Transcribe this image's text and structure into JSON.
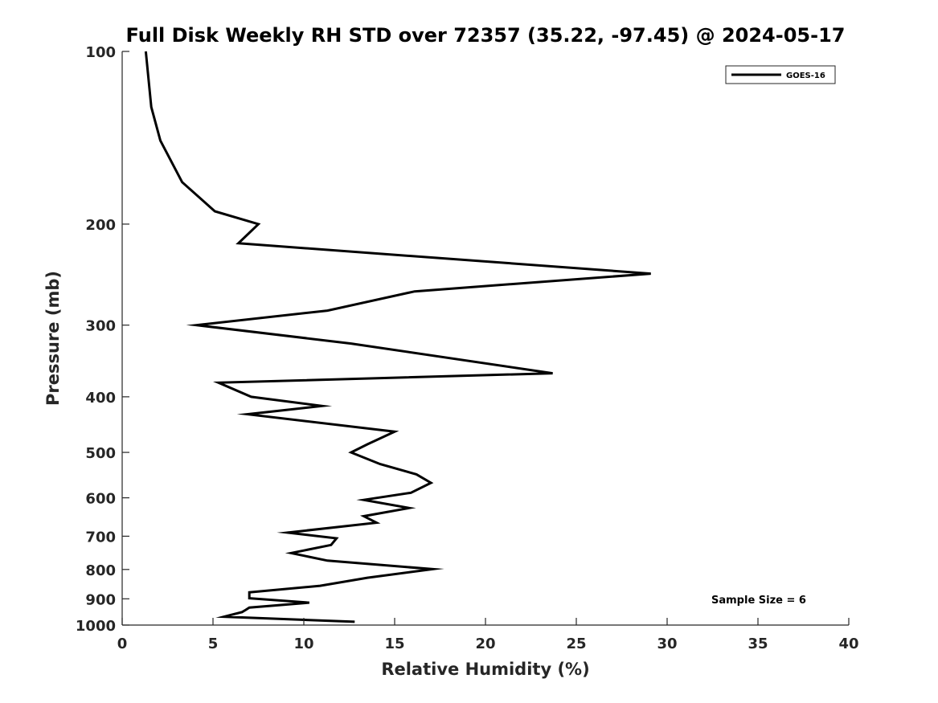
{
  "chart_data": {
    "type": "line",
    "title": "Full Disk Weekly RH STD over 72357 (35.22, -97.45) @ 2024-05-17",
    "xlabel": "Relative Humidity (%)",
    "ylabel": "Pressure (mb)",
    "xlim": [
      0,
      40
    ],
    "ylim": [
      100,
      1000
    ],
    "y_scale": "log",
    "y_reversed": true,
    "x_ticks": [
      0,
      5,
      10,
      15,
      20,
      25,
      30,
      35,
      40
    ],
    "y_ticks": [
      100,
      200,
      300,
      400,
      500,
      600,
      700,
      800,
      900,
      1000
    ],
    "grid": false,
    "legend_position": "top-right",
    "annotation": "Sample Size = 6",
    "series": [
      {
        "name": "GOES-16",
        "color": "#000000",
        "points": [
          [
            1.3,
            100
          ],
          [
            1.6,
            125
          ],
          [
            2.1,
            143
          ],
          [
            3.3,
            169
          ],
          [
            5.1,
            190
          ],
          [
            7.5,
            200
          ],
          [
            6.4,
            216
          ],
          [
            29.1,
            244
          ],
          [
            16.1,
            262
          ],
          [
            11.3,
            283
          ],
          [
            4.1,
            300
          ],
          [
            12.6,
            323
          ],
          [
            23.7,
            364
          ],
          [
            5.3,
            378
          ],
          [
            7.1,
            400
          ],
          [
            11.0,
            415
          ],
          [
            6.9,
            429
          ],
          [
            15.0,
            460
          ],
          [
            13.5,
            484
          ],
          [
            12.6,
            500
          ],
          [
            14.2,
            524
          ],
          [
            16.2,
            546
          ],
          [
            17.0,
            565
          ],
          [
            15.9,
            588
          ],
          [
            13.3,
            605
          ],
          [
            15.8,
            625
          ],
          [
            13.3,
            646
          ],
          [
            14.0,
            663
          ],
          [
            9.1,
            690
          ],
          [
            11.8,
            706
          ],
          [
            11.5,
            725
          ],
          [
            9.3,
            749
          ],
          [
            11.3,
            772
          ],
          [
            17.1,
            799
          ],
          [
            13.5,
            827
          ],
          [
            10.9,
            854
          ],
          [
            7.0,
            877
          ],
          [
            7.0,
            898
          ],
          [
            10.3,
            914
          ],
          [
            7.0,
            932
          ],
          [
            6.8,
            941
          ],
          [
            6.6,
            949
          ],
          [
            5.6,
            967
          ],
          [
            12.8,
            987
          ]
        ]
      }
    ]
  }
}
